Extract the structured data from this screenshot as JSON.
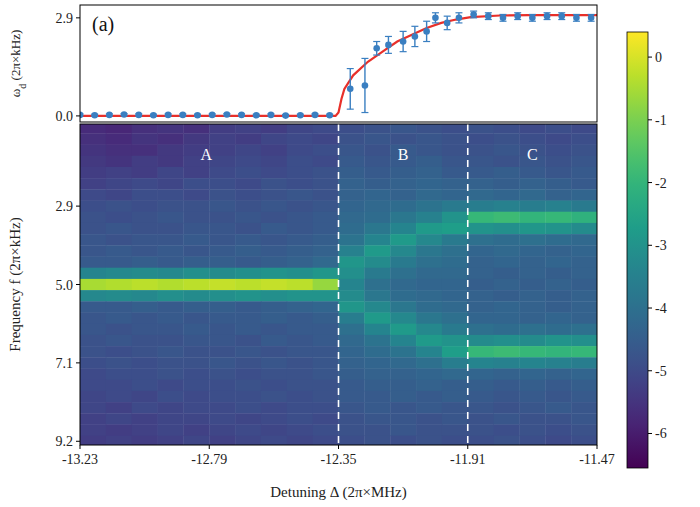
{
  "chart_data": [
    {
      "type": "scatter",
      "panel_label": "(a)",
      "y_label": "ωd (2π×kHz)",
      "xlim": [
        -13.23,
        -11.47
      ],
      "ylim": [
        -0.18,
        3.28
      ],
      "yticks": [
        {
          "value": 0,
          "label": "0.0"
        },
        2.9
      ],
      "tick_labels": "y",
      "series": [
        {
          "type": "scatter",
          "color": "#3a7fc1",
          "marker": "circle",
          "x": [
            -13.23,
            -13.18,
            -13.13,
            -13.08,
            -13.03,
            -12.98,
            -12.93,
            -12.88,
            -12.83,
            -12.78,
            -12.73,
            -12.68,
            -12.63,
            -12.58,
            -12.53,
            -12.48,
            -12.43,
            -12.38,
            -12.31,
            -12.26,
            -12.22,
            -12.18,
            -12.13,
            -12.09,
            -12.05,
            -12.02,
            -11.98,
            -11.94,
            -11.89,
            -11.84,
            -11.79,
            -11.74,
            -11.69,
            -11.64,
            -11.59,
            -11.54,
            -11.49
          ],
          "values": [
            0.03,
            0.02,
            0.03,
            0.04,
            0.03,
            0.02,
            0.03,
            0.03,
            0.02,
            0.03,
            0.04,
            0.03,
            0.02,
            0.03,
            0.01,
            0.02,
            0.03,
            0.02,
            0.8,
            0.9,
            2.0,
            2.1,
            2.2,
            2.35,
            2.5,
            2.9,
            2.75,
            2.9,
            3.0,
            2.95,
            2.9,
            2.95,
            2.9,
            2.95,
            2.95,
            2.9,
            2.9
          ],
          "errors": [
            0.03,
            0.03,
            0.03,
            0.03,
            0.03,
            0.03,
            0.03,
            0.03,
            0.03,
            0.03,
            0.03,
            0.03,
            0.03,
            0.03,
            0.03,
            0.03,
            0.03,
            0.03,
            0.6,
            0.8,
            0.2,
            0.25,
            0.3,
            0.3,
            0.3,
            0.15,
            0.2,
            0.15,
            0.1,
            0.1,
            0.1,
            0.1,
            0.1,
            0.1,
            0.1,
            0.1,
            0.1
          ]
        },
        {
          "type": "line",
          "color": "#e8302a",
          "line_style": "solid",
          "x": [
            -13.23,
            -12.36,
            -12.35,
            -12.34,
            -12.33,
            -12.3,
            -12.25,
            -12.2,
            -12.15,
            -12.1,
            -12.05,
            -12.0,
            -11.95,
            -11.9,
            -11.8,
            -11.7,
            -11.47
          ],
          "values": [
            0,
            0,
            0.1,
            0.5,
            0.8,
            1.2,
            1.6,
            1.9,
            2.2,
            2.4,
            2.6,
            2.75,
            2.85,
            2.92,
            2.97,
            2.98,
            2.98
          ]
        }
      ]
    },
    {
      "type": "heatmap",
      "x_label": "Detuning Δ (2π×MHz)",
      "y_label": "Frequency f (2π×kHz)",
      "xlim": [
        -13.23,
        -11.47
      ],
      "ylim": [
        0.7,
        9.3
      ],
      "xticks": [
        -13.23,
        -12.79,
        -12.35,
        -11.91,
        -11.47
      ],
      "yticks": [
        2.9,
        {
          "value": 5,
          "label": "5.0"
        },
        7.1,
        9.2
      ],
      "dividers": [
        -12.35,
        -11.91
      ],
      "region_labels": [
        {
          "text": "A",
          "x": -12.8
        },
        {
          "text": "B",
          "x": -12.13
        },
        {
          "text": "C",
          "x": -11.69
        }
      ],
      "x": [
        -13.186,
        -13.098,
        -13.01,
        -12.922,
        -12.834,
        -12.746,
        -12.658,
        -12.57,
        -12.482,
        -12.394,
        -12.306,
        -12.218,
        -12.13,
        -12.042,
        -11.954,
        -11.866,
        -11.778,
        -11.69,
        -11.602,
        -11.514
      ],
      "y": [
        0.8,
        1.1,
        1.4,
        1.7,
        2.0,
        2.3,
        2.6,
        2.9,
        3.2,
        3.5,
        3.8,
        4.1,
        4.4,
        4.7,
        5.0,
        5.3,
        5.6,
        5.9,
        6.2,
        6.5,
        6.8,
        7.1,
        7.4,
        7.7,
        8.0,
        8.3,
        8.6,
        8.9,
        9.2
      ],
      "cells": [
        [
          -5.7,
          -5.8,
          -5.6,
          -5.5,
          -5.6,
          -5.3,
          -5.2,
          -5.3,
          -5.1,
          -5.0,
          -4.9,
          -4.8,
          -4.7,
          -4.8,
          -4.9,
          -4.8,
          -4.9,
          -5.0,
          -4.9,
          -5.0
        ],
        [
          -5.6,
          -5.7,
          -5.5,
          -5.6,
          -5.4,
          -5.2,
          -5.3,
          -5.1,
          -5.0,
          -5.1,
          -4.8,
          -4.7,
          -4.8,
          -4.7,
          -4.8,
          -4.9,
          -4.8,
          -4.9,
          -5.0,
          -4.9
        ],
        [
          -5.5,
          -5.6,
          -5.6,
          -5.4,
          -5.3,
          -5.2,
          -5.1,
          -5.2,
          -5.0,
          -4.9,
          -4.7,
          -4.8,
          -4.6,
          -4.7,
          -4.8,
          -4.8,
          -4.7,
          -4.8,
          -4.9,
          -4.8
        ],
        [
          -5.4,
          -5.5,
          -5.3,
          -5.4,
          -5.2,
          -5.1,
          -5.0,
          -5.1,
          -4.9,
          -5.0,
          -4.6,
          -4.7,
          -4.6,
          -4.5,
          -4.7,
          -4.7,
          -4.8,
          -4.7,
          -4.8,
          -4.7
        ],
        [
          -5.3,
          -5.2,
          -5.3,
          -5.1,
          -5.2,
          -5.0,
          -4.9,
          -5.0,
          -4.9,
          -4.8,
          -4.5,
          -4.6,
          -4.5,
          -4.4,
          -4.6,
          -4.6,
          -4.5,
          -4.6,
          -4.7,
          -4.6
        ],
        [
          -5.2,
          -5.1,
          -5.0,
          -5.1,
          -4.9,
          -4.9,
          -5.0,
          -4.8,
          -4.9,
          -4.8,
          -4.4,
          -4.5,
          -4.4,
          -4.3,
          -4.4,
          -4.4,
          -4.5,
          -4.4,
          -4.5,
          -4.6
        ],
        [
          -5.0,
          -5.1,
          -4.9,
          -4.9,
          -5.0,
          -4.8,
          -4.9,
          -4.8,
          -4.7,
          -4.8,
          -4.4,
          -4.3,
          -4.4,
          -4.2,
          -4.3,
          -4.2,
          -4.3,
          -4.2,
          -4.4,
          -4.3
        ],
        [
          -4.9,
          -4.8,
          -4.9,
          -4.8,
          -4.8,
          -4.7,
          -4.8,
          -4.7,
          -4.8,
          -4.7,
          -4.3,
          -4.2,
          -4.1,
          -3.9,
          -3.7,
          -3.6,
          -3.5,
          -3.6,
          -3.5,
          -3.7
        ],
        [
          -4.8,
          -4.9,
          -4.8,
          -4.7,
          -4.8,
          -4.8,
          -4.7,
          -4.8,
          -4.7,
          -4.6,
          -4.2,
          -4.1,
          -3.8,
          -3.5,
          -3.0,
          -1.9,
          -1.8,
          -2.0,
          -1.9,
          -2.1
        ],
        [
          -4.8,
          -4.7,
          -4.8,
          -4.8,
          -4.7,
          -4.7,
          -4.8,
          -4.6,
          -4.7,
          -4.6,
          -4.1,
          -3.8,
          -3.4,
          -2.8,
          -2.7,
          -3.0,
          -3.1,
          -2.9,
          -3.0,
          -3.2
        ],
        [
          -4.7,
          -4.8,
          -4.7,
          -4.7,
          -4.6,
          -4.7,
          -4.6,
          -4.7,
          -4.6,
          -4.5,
          -3.9,
          -3.4,
          -2.8,
          -3.3,
          -3.7,
          -4.0,
          -4.1,
          -4.0,
          -4.1,
          -4.2
        ],
        [
          -4.7,
          -4.6,
          -4.7,
          -4.6,
          -4.7,
          -4.6,
          -4.5,
          -4.6,
          -4.5,
          -4.4,
          -3.5,
          -2.8,
          -3.3,
          -3.8,
          -4.0,
          -4.3,
          -4.2,
          -4.3,
          -4.4,
          -4.3
        ],
        [
          -4.6,
          -4.6,
          -4.5,
          -4.6,
          -4.5,
          -4.5,
          -4.6,
          -4.5,
          -4.4,
          -4.2,
          -2.9,
          -3.2,
          -3.7,
          -4.0,
          -4.1,
          -4.4,
          -4.3,
          -4.4,
          -4.3,
          -4.4
        ],
        [
          -3.4,
          -3.3,
          -3.2,
          -3.3,
          -3.1,
          -3.2,
          -3.1,
          -3.0,
          -3.1,
          -2.9,
          -3.1,
          -3.7,
          -4.0,
          -4.2,
          -4.2,
          -4.4,
          -4.5,
          -4.4,
          -4.5,
          -4.4
        ],
        [
          -0.5,
          -0.4,
          -0.3,
          -0.4,
          -0.3,
          -0.2,
          -0.3,
          -0.2,
          -0.3,
          -0.7,
          -3.4,
          -4.0,
          -4.2,
          -4.3,
          -4.3,
          -4.5,
          -4.4,
          -4.5,
          -4.4,
          -4.5
        ],
        [
          -3.3,
          -3.2,
          -3.3,
          -3.1,
          -3.2,
          -3.1,
          -3.0,
          -3.1,
          -3.0,
          -3.0,
          -3.2,
          -3.8,
          -4.1,
          -4.2,
          -4.3,
          -4.4,
          -4.5,
          -4.4,
          -4.5,
          -4.4
        ],
        [
          -4.6,
          -4.6,
          -4.5,
          -4.6,
          -4.5,
          -4.5,
          -4.6,
          -4.5,
          -4.4,
          -4.3,
          -2.9,
          -3.3,
          -3.8,
          -4.1,
          -4.2,
          -4.4,
          -4.3,
          -4.4,
          -4.5,
          -4.4
        ],
        [
          -4.7,
          -4.6,
          -4.7,
          -4.6,
          -4.7,
          -4.6,
          -4.6,
          -4.5,
          -4.6,
          -4.5,
          -3.6,
          -2.8,
          -3.3,
          -3.8,
          -4.0,
          -4.3,
          -4.3,
          -4.4,
          -4.3,
          -4.4
        ],
        [
          -4.7,
          -4.8,
          -4.7,
          -4.7,
          -4.6,
          -4.7,
          -4.6,
          -4.7,
          -4.6,
          -4.6,
          -4.0,
          -3.4,
          -2.8,
          -3.3,
          -3.7,
          -4.0,
          -4.1,
          -4.0,
          -4.1,
          -4.0
        ],
        [
          -4.8,
          -4.7,
          -4.8,
          -4.8,
          -4.7,
          -4.7,
          -4.8,
          -4.6,
          -4.7,
          -4.6,
          -4.2,
          -3.9,
          -3.4,
          -2.8,
          -3.0,
          -3.2,
          -3.1,
          -3.2,
          -3.0,
          -3.1
        ],
        [
          -4.8,
          -4.9,
          -4.8,
          -4.7,
          -4.8,
          -4.8,
          -4.7,
          -4.8,
          -4.7,
          -4.7,
          -4.3,
          -4.1,
          -3.9,
          -3.4,
          -2.7,
          -1.9,
          -1.8,
          -1.9,
          -2.0,
          -1.9
        ],
        [
          -4.9,
          -4.8,
          -4.9,
          -4.8,
          -4.8,
          -4.7,
          -4.8,
          -4.7,
          -4.8,
          -4.7,
          -4.4,
          -4.3,
          -4.2,
          -4.0,
          -3.6,
          -3.4,
          -3.5,
          -3.4,
          -3.5,
          -3.6
        ],
        [
          -5.0,
          -4.9,
          -4.9,
          -4.8,
          -4.9,
          -4.8,
          -4.9,
          -4.8,
          -4.8,
          -4.7,
          -4.5,
          -4.4,
          -4.4,
          -4.3,
          -4.2,
          -4.3,
          -4.4,
          -4.3,
          -4.4,
          -4.3
        ],
        [
          -5.0,
          -5.0,
          -4.9,
          -5.0,
          -4.9,
          -4.9,
          -4.8,
          -4.9,
          -4.8,
          -4.8,
          -4.6,
          -4.5,
          -4.5,
          -4.4,
          -4.5,
          -4.5,
          -4.6,
          -4.5,
          -4.6,
          -4.5
        ],
        [
          -5.1,
          -5.0,
          -5.1,
          -4.9,
          -5.0,
          -4.9,
          -4.9,
          -4.8,
          -4.9,
          -4.8,
          -4.6,
          -4.6,
          -4.5,
          -4.6,
          -4.5,
          -4.6,
          -4.7,
          -4.6,
          -4.7,
          -4.6
        ],
        [
          -5.1,
          -5.2,
          -5.0,
          -5.1,
          -5.0,
          -5.0,
          -4.9,
          -5.0,
          -4.9,
          -4.9,
          -4.7,
          -4.6,
          -4.7,
          -4.6,
          -4.7,
          -4.7,
          -4.8,
          -4.7,
          -4.6,
          -4.7
        ],
        [
          -5.2,
          -5.1,
          -5.2,
          -5.1,
          -5.1,
          -5.0,
          -5.1,
          -5.0,
          -4.9,
          -5.0,
          -4.8,
          -4.7,
          -4.7,
          -4.8,
          -4.7,
          -4.8,
          -4.7,
          -4.8,
          -4.8,
          -4.7
        ],
        [
          -5.2,
          -5.3,
          -5.2,
          -5.1,
          -5.2,
          -5.1,
          -5.0,
          -5.1,
          -5.0,
          -4.9,
          -4.8,
          -4.8,
          -4.7,
          -4.8,
          -4.8,
          -4.8,
          -4.9,
          -4.8,
          -4.9,
          -4.8
        ],
        [
          -5.3,
          -5.2,
          -5.3,
          -5.2,
          -5.1,
          -5.2,
          -5.1,
          -5.0,
          -5.1,
          -5.0,
          -4.9,
          -4.8,
          -4.9,
          -4.8,
          -4.9,
          -4.9,
          -4.8,
          -4.9,
          -5.0,
          -4.9
        ]
      ],
      "colorbar": {
        "range": [
          -6.55,
          0.4
        ],
        "ticks": [
          0,
          -1,
          -2,
          -3,
          -4,
          -5,
          -6
        ]
      }
    }
  ]
}
